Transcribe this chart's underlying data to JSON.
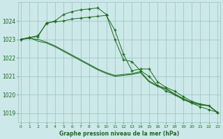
{
  "x": [
    0,
    1,
    2,
    3,
    4,
    5,
    6,
    7,
    8,
    9,
    10,
    11,
    12,
    13,
    14,
    15,
    16,
    17,
    18,
    19,
    20,
    21,
    22,
    23
  ],
  "series": [
    [
      1023.0,
      1023.1,
      1023.15,
      1023.9,
      1023.95,
      1024.0,
      1024.1,
      1024.15,
      1024.2,
      1024.25,
      1024.3,
      1023.5,
      1022.2,
      1021.3,
      1021.4,
      1021.4,
      1020.7,
      1020.4,
      1020.2,
      1019.9,
      1019.65,
      1019.5,
      1019.4,
      1019.05
    ],
    [
      1023.0,
      1023.1,
      1023.2,
      1023.85,
      1024.0,
      1024.35,
      1024.5,
      1024.6,
      1024.65,
      1024.7,
      1024.35,
      1023.0,
      1021.9,
      1021.8,
      1021.3,
      1021.0,
      1020.5,
      1020.2,
      1020.0,
      1019.75,
      1019.55,
      1019.35,
      1019.2,
      1019.05
    ],
    [
      1023.0,
      1023.1,
      1022.9,
      1022.8,
      1022.6,
      1022.35,
      1022.1,
      1021.85,
      1021.6,
      1021.35,
      1021.15,
      1021.0,
      1021.05,
      1021.1,
      1021.2,
      1020.7,
      1020.45,
      1020.3,
      1020.0,
      1019.75,
      1019.55,
      1019.45,
      1019.4,
      1019.05
    ],
    [
      1023.0,
      1023.05,
      1023.0,
      1022.85,
      1022.65,
      1022.4,
      1022.15,
      1021.9,
      1021.65,
      1021.4,
      1021.2,
      1021.05,
      1021.1,
      1021.15,
      1021.25,
      1020.75,
      1020.5,
      1020.35,
      1020.05,
      1019.8,
      1019.6,
      1019.5,
      1019.42,
      1019.05
    ]
  ],
  "has_markers": [
    true,
    true,
    false,
    false
  ],
  "line_colors": [
    "#1a6b1a",
    "#1a6b1a",
    "#1a6b1a",
    "#1a6b1a"
  ],
  "bg_color": "#cce8e8",
  "grid_color": "#9bbfbf",
  "axis_color": "#1a6b1a",
  "text_color": "#1a6b1a",
  "xlabel": "Graphe pression niveau de la mer (hPa)",
  "ylim": [
    1018.5,
    1025.0
  ],
  "yticks": [
    1019,
    1020,
    1021,
    1022,
    1023,
    1024
  ],
  "xticks": [
    0,
    1,
    2,
    3,
    4,
    5,
    6,
    7,
    8,
    9,
    10,
    11,
    12,
    13,
    14,
    15,
    16,
    17,
    18,
    19,
    20,
    21,
    22,
    23
  ],
  "marker": "+"
}
